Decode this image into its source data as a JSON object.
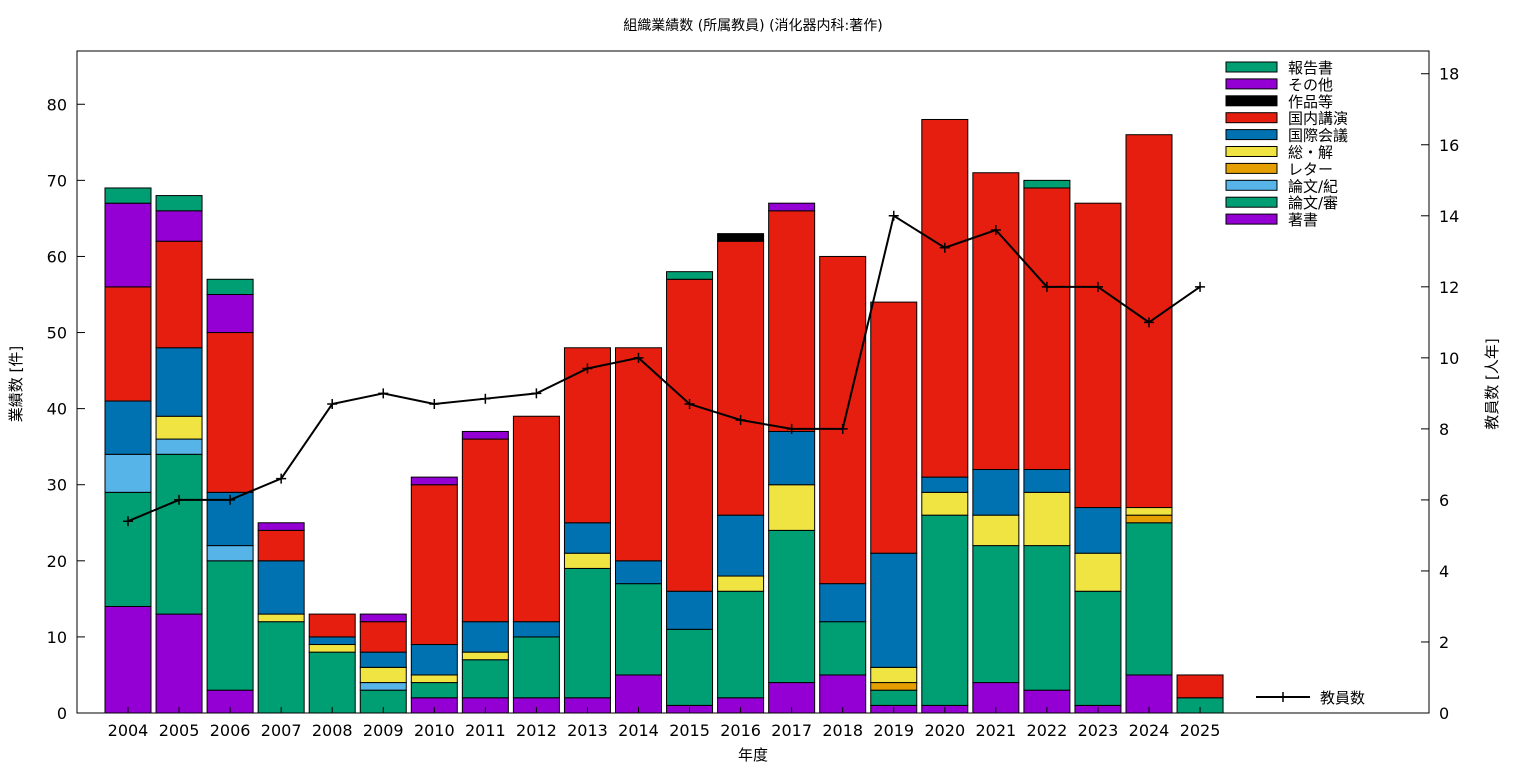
{
  "chart_data": {
    "type": "bar",
    "stacked": true,
    "title": "組織業績数 (所属教員) (消化器内科:著作)",
    "xlabel": "年度",
    "ylabel": "業績数 [件]",
    "y2label": "教員数 [人年]",
    "ylim": [
      0,
      87
    ],
    "y2lim": [
      0,
      18.64
    ],
    "yticks": [
      0,
      10,
      20,
      30,
      40,
      50,
      60,
      70,
      80
    ],
    "y2ticks": [
      0,
      2,
      4,
      6,
      8,
      10,
      12,
      14,
      16,
      18
    ],
    "categories": [
      "2004",
      "2005",
      "2006",
      "2007",
      "2008",
      "2009",
      "2010",
      "2011",
      "2012",
      "2013",
      "2014",
      "2015",
      "2016",
      "2017",
      "2018",
      "2019",
      "2020",
      "2021",
      "2022",
      "2023",
      "2024",
      "2025"
    ],
    "series": [
      {
        "name": "著書",
        "color": "#9400D3",
        "values": [
          14,
          13,
          3,
          0,
          0,
          0,
          2,
          2,
          2,
          2,
          5,
          1,
          2,
          4,
          5,
          1,
          1,
          4,
          3,
          1,
          5,
          0
        ]
      },
      {
        "name": "論文/審",
        "color": "#009E73",
        "values": [
          15,
          21,
          17,
          12,
          8,
          3,
          2,
          5,
          8,
          17,
          12,
          10,
          14,
          20,
          7,
          2,
          25,
          18,
          19,
          15,
          20,
          2
        ]
      },
      {
        "name": "論文/紀",
        "color": "#56B4E9",
        "values": [
          5,
          2,
          2,
          0,
          0,
          1,
          0,
          0,
          0,
          0,
          0,
          0,
          0,
          0,
          0,
          0,
          0,
          0,
          0,
          0,
          0,
          0
        ]
      },
      {
        "name": "レター",
        "color": "#E69F00",
        "values": [
          0,
          0,
          0,
          0,
          0,
          0,
          0,
          0,
          0,
          0,
          0,
          0,
          0,
          0,
          0,
          1,
          0,
          0,
          0,
          0,
          1,
          0
        ]
      },
      {
        "name": "総・解",
        "color": "#F0E442",
        "values": [
          0,
          3,
          0,
          1,
          1,
          2,
          1,
          1,
          0,
          2,
          0,
          0,
          2,
          6,
          0,
          2,
          3,
          4,
          7,
          5,
          1,
          0
        ]
      },
      {
        "name": "国際会議",
        "color": "#0072B2",
        "values": [
          7,
          9,
          7,
          7,
          1,
          2,
          4,
          4,
          2,
          4,
          3,
          5,
          8,
          7,
          5,
          15,
          2,
          6,
          3,
          6,
          0,
          0
        ]
      },
      {
        "name": "国内講演",
        "color": "#E51E10",
        "values": [
          15,
          14,
          21,
          4,
          3,
          4,
          21,
          24,
          27,
          23,
          28,
          41,
          36,
          29,
          43,
          33,
          47,
          39,
          37,
          40,
          49,
          3
        ]
      },
      {
        "name": "作品等",
        "color": "#000000",
        "values": [
          0,
          0,
          0,
          0,
          0,
          0,
          0,
          0,
          0,
          0,
          0,
          0,
          1,
          0,
          0,
          0,
          0,
          0,
          0,
          0,
          0,
          0
        ]
      },
      {
        "name": "その他",
        "color": "#9400D3",
        "values": [
          11,
          4,
          5,
          1,
          0,
          1,
          1,
          1,
          0,
          0,
          0,
          0,
          0,
          1,
          0,
          0,
          0,
          0,
          0,
          0,
          0,
          0
        ]
      },
      {
        "name": "報告書",
        "color": "#009E73",
        "values": [
          2,
          2,
          2,
          0,
          0,
          0,
          0,
          0,
          0,
          0,
          0,
          1,
          0,
          0,
          0,
          0,
          0,
          0,
          1,
          0,
          0,
          0
        ]
      }
    ],
    "line_series": {
      "name": "教員数",
      "axis": "y2",
      "values": [
        5.4,
        6.0,
        6.0,
        6.6,
        8.7,
        9.0,
        8.7,
        8.85,
        9.0,
        9.7,
        10.0,
        8.7,
        8.25,
        8.0,
        8.0,
        14.0,
        13.1,
        13.6,
        12.0,
        12.0,
        11.0,
        12.0
      ]
    }
  }
}
